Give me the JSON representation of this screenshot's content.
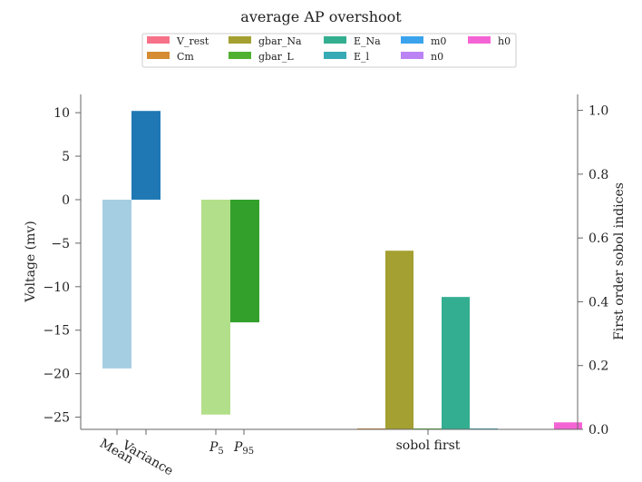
{
  "chart_data": {
    "type": "bar",
    "title": "average AP overshoot",
    "left_axis": {
      "label": "Voltage (mv)",
      "ylim": [
        -26.4,
        12.1
      ],
      "ticks": [
        10,
        5,
        0,
        -5,
        -10,
        -15,
        -20,
        -25
      ],
      "tick_labels": [
        "10",
        "5",
        "0",
        "−5",
        "−10",
        "−15",
        "−20",
        "−25"
      ]
    },
    "right_axis": {
      "label": "First order sobol indices",
      "ylim": [
        0,
        1.05
      ],
      "ticks": [
        0,
        0.2,
        0.4,
        0.6,
        0.8,
        1.0
      ],
      "tick_labels": [
        "0.0",
        "0.2",
        "0.4",
        "0.6",
        "0.8",
        "1.0"
      ]
    },
    "x_tick_labels": {
      "mean": "Mean",
      "variance": "Variance",
      "p5": "P",
      "p5_sub": "5",
      "p95": "P",
      "p95_sub": "95",
      "sobol": "sobol first"
    },
    "stat_bars": [
      {
        "name": "Mean",
        "value": -19.4,
        "color": "#a6cee3"
      },
      {
        "name": "Variance",
        "value": 10.2,
        "color": "#1f78b4"
      },
      {
        "name": "P5",
        "value": -24.7,
        "color": "#b2df8a"
      },
      {
        "name": "P95",
        "value": -14.1,
        "color": "#33a02c"
      }
    ],
    "sobol_bars": [
      {
        "name": "V_rest",
        "value": 0.0,
        "color": "#f77189"
      },
      {
        "name": "Cm",
        "value": 0.003,
        "color": "#d58c32"
      },
      {
        "name": "gbar_Na",
        "value": 0.56,
        "color": "#a4a031"
      },
      {
        "name": "gbar_L",
        "value": 0.003,
        "color": "#50b131"
      },
      {
        "name": "E_Na",
        "value": 0.415,
        "color": "#34ae91"
      },
      {
        "name": "E_l",
        "value": 0.003,
        "color": "#37abb5"
      },
      {
        "name": "m0",
        "value": 0.0,
        "color": "#3ba3ec"
      },
      {
        "name": "n0",
        "value": 0.0,
        "color": "#bb83f4"
      },
      {
        "name": "h0",
        "value": 0.022,
        "color": "#f564d4"
      }
    ],
    "legend_placement": "top-center",
    "grid": false
  }
}
